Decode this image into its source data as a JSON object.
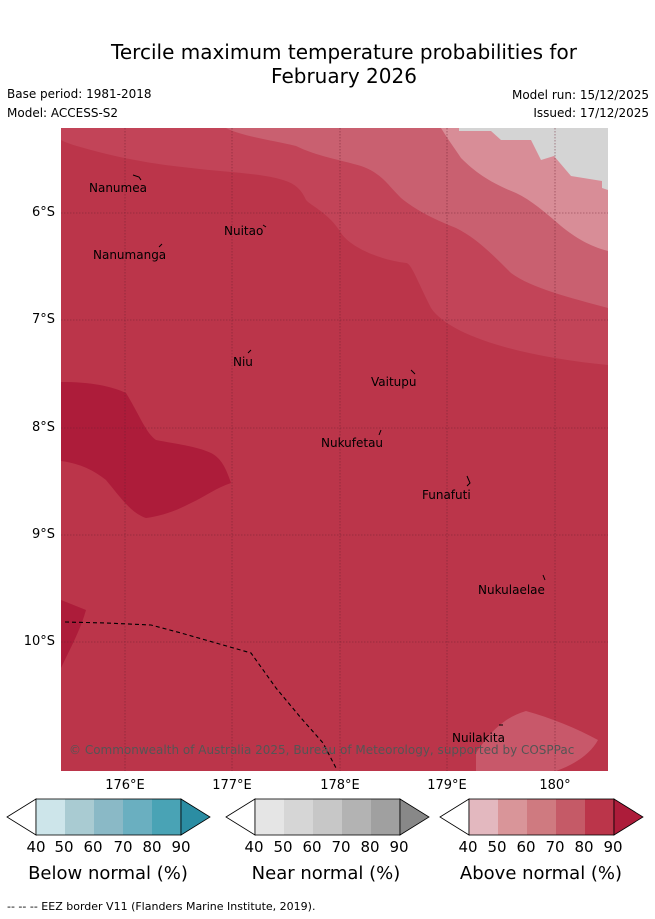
{
  "title_line1": "Tercile maximum temperature probabilities for",
  "title_line2": "February 2026",
  "base_period": "Base period: 1981-2018",
  "model": "Model: ACCESS-S2",
  "model_run": "Model run: 15/12/2025",
  "issued": "Issued: 17/12/2025",
  "lat_labels": [
    "6°S",
    "7°S",
    "8°S",
    "9°S",
    "10°S"
  ],
  "lon_labels": [
    "176°E",
    "177°E",
    "178°E",
    "179°E",
    "180°"
  ],
  "places": {
    "nanumea": "Nanumea",
    "nuitao": "Nuitao",
    "nanumanga": "Nanumanga",
    "niu": "Niu",
    "vaitupu": "Vaitupu",
    "nukufetau": "Nukufetau",
    "funafuti": "Funafuti",
    "nukulaelae": "Nukulaelae",
    "nuilakita": "Nuilakita"
  },
  "copyright": "© Commonwealth of Australia 2025, Bureau of Meteorology, supported by COSPPac",
  "colorbars": {
    "ticks": [
      "40",
      "50",
      "60",
      "70",
      "80",
      "90"
    ],
    "below": {
      "title": "Below normal (%)",
      "colors": [
        "#ffffff",
        "#cde5ea",
        "#a9cbd2",
        "#8ab9c6",
        "#6aafc0",
        "#49a3b5",
        "#2b8da3"
      ]
    },
    "near": {
      "title": "Near normal (%)",
      "colors": [
        "#ffffff",
        "#e5e5e5",
        "#d6d6d6",
        "#c7c7c7",
        "#b3b3b3",
        "#a0a0a0",
        "#888888"
      ]
    },
    "above": {
      "title": "Above normal (%)",
      "colors": [
        "#ffffff",
        "#e3b8bf",
        "#d99599",
        "#cf7a80",
        "#c55a67",
        "#bb354a",
        "#ad1c3a"
      ]
    }
  },
  "legend_footer": "--  --  -- EEZ border V11 (Flanders Marine Institute, 2019)."
}
